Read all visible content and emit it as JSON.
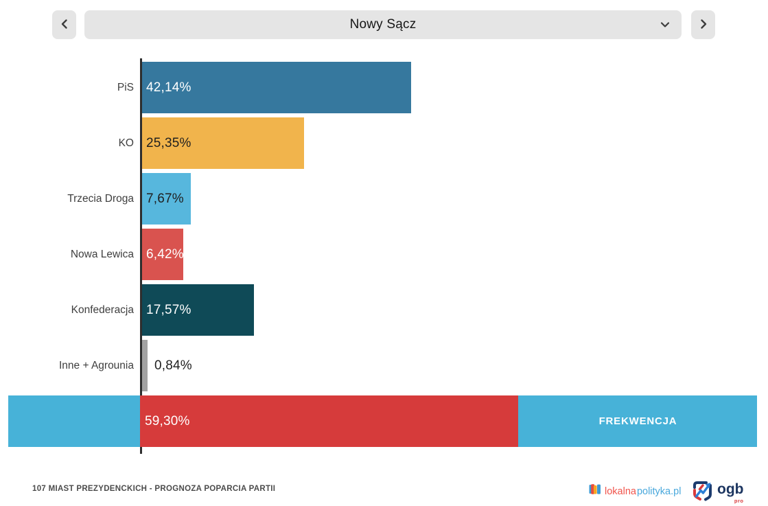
{
  "selector": {
    "city": "Nowy Sącz"
  },
  "chart_data": {
    "type": "bar",
    "orientation": "horizontal",
    "unit": "%",
    "categories": [
      "PiS",
      "KO",
      "Trzecia Droga",
      "Nowa Lewica",
      "Konfederacja",
      "Inne + Agrounia"
    ],
    "values": [
      42.14,
      25.35,
      7.67,
      6.42,
      17.57,
      0.84
    ],
    "value_labels": [
      "42,14%",
      "25,35%",
      "7,67%",
      "6,42%",
      "17,57%",
      "0,84%"
    ],
    "bar_colors": [
      "#36789E",
      "#F1B44C",
      "#57B7DD",
      "#D9534F",
      "#0F4A57",
      "#A2A2A2"
    ],
    "value_text_colors": [
      "#FFFFFF",
      "#1F1F1F",
      "#1F1F1F",
      "#FFFFFF",
      "#FFFFFF",
      "#1F1F1F"
    ],
    "value_label_inside": [
      true,
      true,
      true,
      true,
      true,
      false
    ],
    "x_axis_range": [
      0,
      96.5
    ],
    "grid": false,
    "legend": false,
    "turnout": {
      "label": "FREKWENCJA",
      "value": 59.3,
      "value_label": "59,30%",
      "track_color": "#47B2D8",
      "fill_color": "#D63B3B"
    }
  },
  "footer": {
    "caption": "107 MIAST PREZYDENCKICH - PROGNOZA POPARCIA PARTII",
    "logos": {
      "lokalnapolityka": {
        "part1": "lokalna",
        "part2": "polityka.pl"
      },
      "ogb": {
        "name": "ogb",
        "sub": "pro"
      }
    }
  }
}
